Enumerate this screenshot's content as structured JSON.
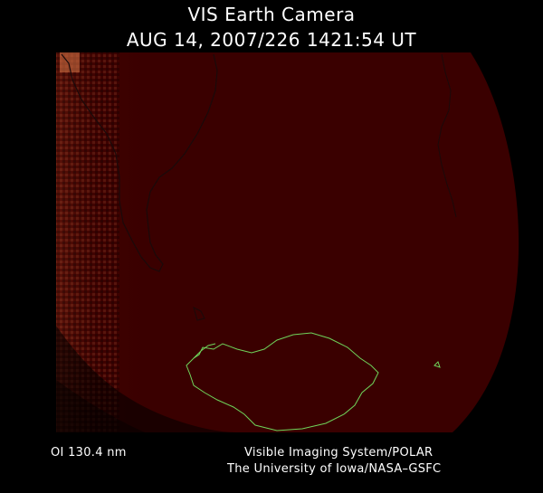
{
  "header": {
    "title": "VIS Earth Camera",
    "timestamp": "AUG 14, 2007/226 1421:54 UT"
  },
  "footer": {
    "filter": "OI  130.4 nm",
    "instrument": "Visible Imaging System/POLAR",
    "institution": "The University of Iowa/NASA–GSFC"
  },
  "colors": {
    "background": "#000000",
    "disk": "#3a0000",
    "glow": "#b0502a",
    "coastline_south_america": "#1a0a0a",
    "coastline_antarctica": "#6fd45a"
  }
}
